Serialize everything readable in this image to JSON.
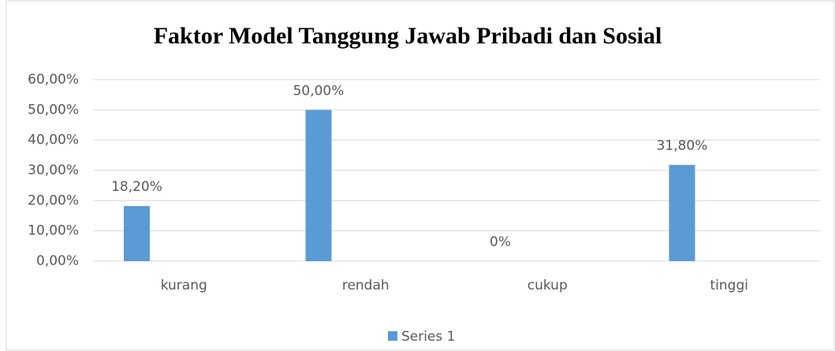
{
  "chart_data": {
    "type": "bar",
    "title": "Faktor Model Tanggung Jawab Pribadi dan Sosial",
    "categories": [
      "kurang",
      "rendah",
      "cukup",
      "tinggi"
    ],
    "series": [
      {
        "name": "Series 1",
        "color": "#5b9bd5",
        "values": [
          18.2,
          50,
          0,
          31.8
        ],
        "value_labels": [
          "18,20%",
          "50,00%",
          "0%",
          "31,80%"
        ]
      }
    ],
    "ylim": [
      0,
      60
    ],
    "yticks": [
      {
        "value": 0,
        "label": "0,00%"
      },
      {
        "value": 10,
        "label": "10,00%"
      },
      {
        "value": 20,
        "label": "20,00%"
      },
      {
        "value": 30,
        "label": "30,00%"
      },
      {
        "value": 40,
        "label": "40,00%"
      },
      {
        "value": 50,
        "label": "50,00%"
      },
      {
        "value": 60,
        "label": "60,00%"
      }
    ],
    "grid": true,
    "legend": "bottom"
  }
}
